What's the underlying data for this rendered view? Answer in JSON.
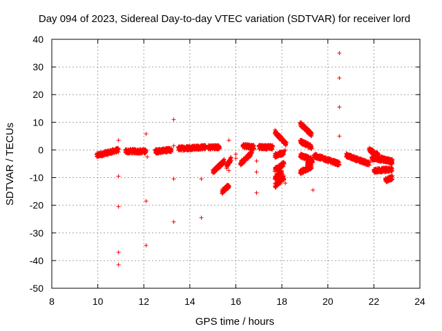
{
  "chart_data": {
    "type": "scatter",
    "title": "Day 094 of 2023, Sidereal Day-to-day VTEC variation (SDTVAR) for receiver lord",
    "xlabel": "GPS time / hours",
    "ylabel": "SDTVAR / TECUs",
    "xlim": [
      8,
      24
    ],
    "ylim": [
      -50,
      40
    ],
    "xticks": [
      "8",
      "10",
      "12",
      "14",
      "16",
      "18",
      "20",
      "22",
      "24"
    ],
    "yticks": [
      "-50",
      "-40",
      "-30",
      "-20",
      "-10",
      "0",
      "10",
      "20",
      "30",
      "40"
    ],
    "grid": true,
    "marker": "+",
    "color": "#ff0000",
    "segments": [
      {
        "x0": 9.95,
        "x1": 10.9,
        "y0": -2.0,
        "y1": 0.0
      },
      {
        "x0": 11.2,
        "x1": 12.1,
        "y0": -0.5,
        "y1": -0.5
      },
      {
        "x0": 12.5,
        "x1": 13.2,
        "y0": -0.5,
        "y1": 0.0
      },
      {
        "x0": 13.5,
        "x1": 14.7,
        "y0": 0.5,
        "y1": 1.0
      },
      {
        "x0": 14.8,
        "x1": 15.3,
        "y0": 1.0,
        "y1": 1.0
      },
      {
        "x0": 15.0,
        "x1": 15.5,
        "y0": -8.0,
        "y1": -4.0
      },
      {
        "x0": 15.6,
        "x1": 15.8,
        "y0": -6.0,
        "y1": -3.0
      },
      {
        "x0": 15.4,
        "x1": 15.7,
        "y0": -15.0,
        "y1": -13.0
      },
      {
        "x0": 16.2,
        "x1": 16.7,
        "y0": -5.0,
        "y1": -1.0
      },
      {
        "x0": 16.3,
        "x1": 16.8,
        "y0": 1.5,
        "y1": 1.0
      },
      {
        "x0": 17.0,
        "x1": 17.6,
        "y0": 1.0,
        "y1": 1.0
      },
      {
        "x0": 17.7,
        "x1": 18.2,
        "y0": 6.5,
        "y1": 2.0
      },
      {
        "x0": 17.7,
        "x1": 18.1,
        "y0": -2.0,
        "y1": -1.0
      },
      {
        "x0": 17.7,
        "x1": 18.1,
        "y0": -7.0,
        "y1": -5.0
      },
      {
        "x0": 17.7,
        "x1": 18.0,
        "y0": -10.0,
        "y1": -8.0
      },
      {
        "x0": 17.7,
        "x1": 18.1,
        "y0": -13.0,
        "y1": -10.0
      },
      {
        "x0": 18.8,
        "x1": 19.3,
        "y0": 9.5,
        "y1": 5.5
      },
      {
        "x0": 18.8,
        "x1": 19.3,
        "y0": 3.0,
        "y1": 1.0
      },
      {
        "x0": 18.8,
        "x1": 19.3,
        "y0": -2.0,
        "y1": -3.5
      },
      {
        "x0": 18.8,
        "x1": 19.3,
        "y0": -8.0,
        "y1": -6.0
      },
      {
        "x0": 19.1,
        "x1": 19.35,
        "y0": -5.0,
        "y1": -4.0
      },
      {
        "x0": 19.4,
        "x1": 20.5,
        "y0": -2.0,
        "y1": -5.0
      },
      {
        "x0": 20.8,
        "x1": 21.8,
        "y0": -2.0,
        "y1": -5.0
      },
      {
        "x0": 21.9,
        "x1": 22.8,
        "y0": -3.0,
        "y1": -4.0
      },
      {
        "x0": 21.8,
        "x1": 22.2,
        "y0": 0.0,
        "y1": -2.0
      },
      {
        "x0": 22.3,
        "x1": 22.8,
        "y0": -3.0,
        "y1": -4.5
      },
      {
        "x0": 22.0,
        "x1": 22.8,
        "y0": -7.5,
        "y1": -7.0
      },
      {
        "x0": 22.5,
        "x1": 22.8,
        "y0": -11.0,
        "y1": -10.0
      }
    ],
    "outliers": [
      {
        "x": 10.9,
        "y": 3.5
      },
      {
        "x": 10.9,
        "y": -9.5
      },
      {
        "x": 10.9,
        "y": -20.5
      },
      {
        "x": 10.9,
        "y": -37.0
      },
      {
        "x": 10.9,
        "y": -41.5
      },
      {
        "x": 12.1,
        "y": 5.8
      },
      {
        "x": 12.1,
        "y": -18.5
      },
      {
        "x": 12.1,
        "y": -34.5
      },
      {
        "x": 12.15,
        "y": -2.5
      },
      {
        "x": 13.3,
        "y": 11.0
      },
      {
        "x": 13.3,
        "y": -10.5
      },
      {
        "x": 13.3,
        "y": -26.0
      },
      {
        "x": 13.3,
        "y": 1.5
      },
      {
        "x": 14.5,
        "y": -10.5
      },
      {
        "x": 14.5,
        "y": -24.5
      },
      {
        "x": 15.7,
        "y": 3.5
      },
      {
        "x": 15.7,
        "y": -7.5
      },
      {
        "x": 16.0,
        "y": -1.5
      },
      {
        "x": 16.0,
        "y": -3.0
      },
      {
        "x": 16.9,
        "y": -8.0
      },
      {
        "x": 16.9,
        "y": -15.5
      },
      {
        "x": 16.9,
        "y": -4.0
      },
      {
        "x": 18.15,
        "y": -12.0
      },
      {
        "x": 18.15,
        "y": 0.0
      },
      {
        "x": 19.35,
        "y": -14.5
      },
      {
        "x": 20.5,
        "y": 35.0
      },
      {
        "x": 20.5,
        "y": 26.0
      },
      {
        "x": 20.5,
        "y": 15.5
      },
      {
        "x": 20.5,
        "y": 5.0
      }
    ]
  }
}
